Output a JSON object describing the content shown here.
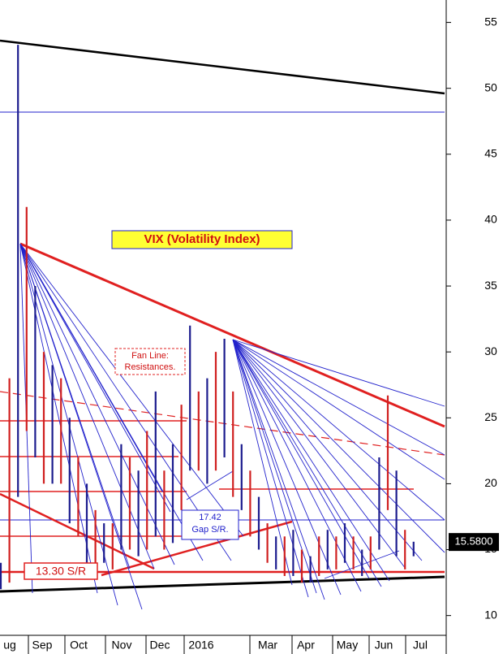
{
  "chart_data": {
    "type": "range-bar",
    "title": "VIX (Volatility Index)",
    "annotations": [
      "Fan Line: Resistances.",
      "17.42 Gap S/R.",
      "13.30 S/R"
    ],
    "last_price": {
      "value": 15.58,
      "label": "15.5800"
    },
    "x_labels": [
      "ug",
      "Sep",
      "Oct",
      "Nov",
      "Dec",
      "2016",
      "Mar",
      "Apr",
      "May",
      "Jun",
      "Jul"
    ],
    "series": [
      {
        "color": "#1c1c8e",
        "low": [
          12,
          12.5,
          19,
          24,
          22,
          20,
          20,
          20,
          17,
          16,
          14,
          14,
          14,
          13.5,
          15,
          15,
          14.5,
          15,
          16,
          15,
          15.5,
          18,
          21,
          21,
          20,
          21,
          22,
          19,
          18,
          16,
          15,
          14,
          13.5,
          13,
          13,
          12.5,
          12.5,
          13,
          13.5,
          13.5,
          14,
          13.5,
          13,
          13.5,
          15,
          18,
          14.5,
          13.5,
          14.5
        ],
        "high": [
          14,
          28,
          53.3,
          41,
          35,
          30,
          29,
          28,
          25,
          22,
          20,
          18,
          17,
          17,
          23,
          22,
          21,
          24,
          27,
          21,
          23,
          26,
          32,
          27,
          28,
          30,
          31,
          27,
          23,
          21,
          19,
          17,
          16,
          16,
          16.5,
          15,
          14.5,
          16,
          16.5,
          16,
          17,
          16,
          15,
          16,
          22,
          26.7,
          21,
          16.5,
          15.6
        ]
      }
    ],
    "ylim": [
      8.5,
      56.7
    ],
    "yticks": [
      10,
      15,
      20,
      25,
      30,
      35,
      40,
      45,
      50,
      55
    ]
  }
}
